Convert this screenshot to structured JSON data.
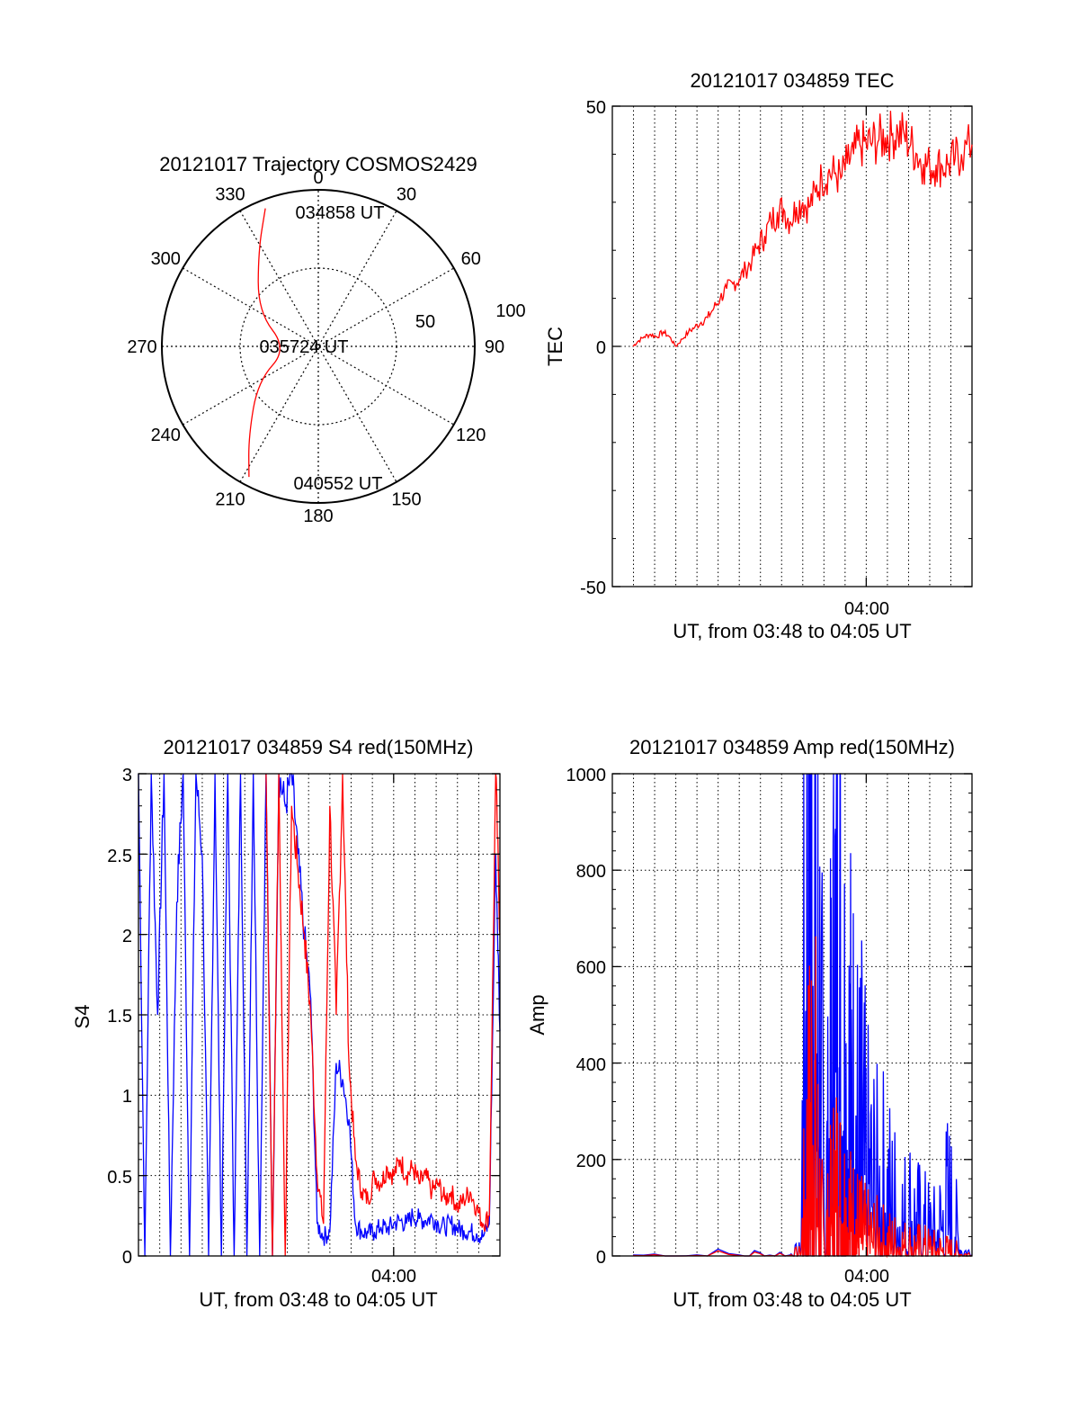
{
  "chart_data": [
    {
      "id": "polar",
      "type": "polar",
      "title": "20121017 Trajectory COSMOS2429",
      "azimuth_labels": [
        "0",
        "30",
        "60",
        "90",
        "120",
        "150",
        "180",
        "210",
        "240",
        "270",
        "300",
        "330"
      ],
      "radial_labels": [
        "50",
        "100"
      ],
      "start_label": "034858 UT",
      "mid_label": "035724 UT",
      "end_label": "040552 UT",
      "trajectory": {
        "color": "#ff0000",
        "points_az_el": [
          [
            339,
            5
          ],
          [
            328,
            25
          ],
          [
            300,
            50
          ],
          [
            265,
            72
          ],
          [
            240,
            50
          ],
          [
            218,
            25
          ],
          [
            208,
            5
          ]
        ]
      }
    },
    {
      "id": "tec",
      "type": "line",
      "title": "20121017 034859 TEC",
      "xlabel": "UT, from 03:48 to 04:05 UT",
      "ylabel": "TEC",
      "xlim": [
        3.8,
        4.0833
      ],
      "ylim": [
        -50,
        50
      ],
      "yticks": [
        "50",
        "0",
        "-50"
      ],
      "xticks": [
        "04:00"
      ],
      "grid": true,
      "series": [
        {
          "color": "#ff0000",
          "x": [
            3.8163,
            3.82,
            3.825,
            3.83,
            3.835,
            3.84,
            3.845,
            3.85,
            3.855,
            3.86,
            3.865,
            3.87,
            3.875,
            3.88,
            3.885,
            3.89,
            3.895,
            3.9,
            3.905,
            3.91,
            3.915,
            3.92,
            3.925,
            3.93,
            3.935,
            3.94,
            3.945,
            3.95,
            3.955,
            3.96,
            3.965,
            3.97,
            3.975,
            3.98,
            3.985,
            3.99,
            3.995,
            4.0,
            4.005,
            4.01,
            4.015,
            4.02,
            4.025,
            4.03,
            4.035,
            4.04,
            4.045,
            4.05,
            4.055,
            4.06,
            4.065,
            4.07,
            4.075,
            4.0833
          ],
          "y": [
            0,
            1,
            2,
            2.5,
            2,
            3,
            2,
            0,
            1.5,
            3,
            4,
            5,
            6,
            8,
            10,
            12,
            13,
            14,
            16,
            18,
            21,
            23,
            26,
            28,
            28.5,
            26,
            29,
            30,
            29,
            32,
            35,
            36,
            36,
            35,
            38,
            40,
            42,
            42,
            42.5,
            43,
            43.5,
            44,
            44.5,
            44,
            42,
            40,
            38,
            37.5,
            37.8,
            37.5,
            38,
            39,
            40,
            42
          ]
        }
      ]
    },
    {
      "id": "s4",
      "type": "line",
      "title": "20121017 034859 S4 red(150MHz)",
      "xlabel": "UT, from 03:48 to 04:05 UT",
      "ylabel": "S4",
      "xlim": [
        3.8,
        4.0833
      ],
      "ylim": [
        0,
        3
      ],
      "yticks": [
        "3",
        "2.5",
        "2",
        "1.5",
        "1",
        "0.5",
        "0"
      ],
      "xticks": [
        "04:00"
      ],
      "grid": true,
      "series": [
        {
          "name": "",
          "color": "#0000ff",
          "x": [
            3.8,
            3.805,
            3.81,
            3.815,
            3.82,
            3.825,
            3.83,
            3.835,
            3.84,
            3.845,
            3.85,
            3.855,
            3.86,
            3.865,
            3.87,
            3.875,
            3.88,
            3.885,
            3.89,
            3.895,
            3.9,
            3.905,
            3.91,
            3.915,
            3.92,
            3.925,
            3.93,
            3.935,
            3.94,
            3.945,
            3.95,
            3.955,
            3.96,
            3.965,
            3.97,
            3.975,
            3.98,
            3.985,
            3.99,
            3.995,
            4.0,
            4.005,
            4.01,
            4.015,
            4.02,
            4.025,
            4.03,
            4.035,
            4.04,
            4.045,
            4.05,
            4.055,
            4.06,
            4.065,
            4.07,
            4.075,
            4.08,
            4.0833
          ],
          "y": [
            3,
            0,
            3,
            1.5,
            3,
            0,
            2.2,
            3,
            0,
            3,
            2.5,
            0,
            3,
            0,
            3,
            0,
            3,
            0,
            3,
            0,
            3,
            0,
            3,
            2.8,
            3,
            2.5,
            2.0,
            1.6,
            0.2,
            0.12,
            0.15,
            1.2,
            1.1,
            0.85,
            0.2,
            0.15,
            0.14,
            0.15,
            0.18,
            0.17,
            0.2,
            0.22,
            0.2,
            0.25,
            0.23,
            0.22,
            0.24,
            0.2,
            0.18,
            0.2,
            0.17,
            0.16,
            0.15,
            0.14,
            0.12,
            0.2,
            2.5,
            1.4
          ]
        },
        {
          "name": "",
          "color": "#ff0000",
          "x": [
            3.9,
            3.905,
            3.91,
            3.915,
            3.92,
            3.925,
            3.93,
            3.935,
            3.94,
            3.945,
            3.95,
            3.955,
            3.96,
            3.965,
            3.97,
            3.975,
            3.98,
            3.985,
            3.99,
            3.995,
            4.0,
            4.005,
            4.01,
            4.015,
            4.02,
            4.025,
            4.03,
            4.035,
            4.04,
            4.045,
            4.05,
            4.055,
            4.06,
            4.065,
            4.07,
            4.075,
            4.08,
            4.0833
          ],
          "y": [
            3,
            0,
            3,
            0,
            2.8,
            2.4,
            2.0,
            1.5,
            0.5,
            0.2,
            2.8,
            1.5,
            3,
            1.2,
            0.6,
            0.4,
            0.35,
            0.5,
            0.45,
            0.55,
            0.5,
            0.6,
            0.5,
            0.55,
            0.45,
            0.5,
            0.4,
            0.45,
            0.35,
            0.4,
            0.3,
            0.35,
            0.4,
            0.3,
            0.2,
            0.25,
            3,
            2
          ]
        }
      ]
    },
    {
      "id": "amp",
      "type": "line",
      "title": "20121017 034859 Amp red(150MHz)",
      "xlabel": "UT, from 03:48 to 04:05 UT",
      "ylabel": "Amp",
      "xlim": [
        3.8,
        4.0833
      ],
      "ylim": [
        0,
        1000
      ],
      "yticks": [
        "1000",
        "800",
        "600",
        "400",
        "200",
        "0"
      ],
      "xticks": [
        "04:00"
      ],
      "grid": true,
      "series": [
        {
          "name": "",
          "color": "#0000ff",
          "x": [
            3.8163,
            3.9,
            3.94,
            3.948,
            3.952,
            3.955,
            3.958,
            3.961,
            3.964,
            3.967,
            3.97,
            3.973,
            3.976,
            3.979,
            3.982,
            3.985,
            3.988,
            3.991,
            3.994,
            3.997,
            4.0,
            4.005,
            4.01,
            4.015,
            4.02,
            4.025,
            4.03,
            4.035,
            4.04,
            4.045,
            4.05,
            4.055,
            4.06,
            4.065,
            4.07,
            4.075,
            4.0833
          ],
          "y": [
            2,
            2,
            2,
            5,
            350,
            640,
            560,
            420,
            260,
            60,
            120,
            220,
            380,
            300,
            260,
            220,
            200,
            180,
            140,
            150,
            110,
            100,
            80,
            90,
            70,
            60,
            50,
            60,
            45,
            40,
            35,
            30,
            50,
            70,
            40,
            10,
            2
          ]
        },
        {
          "name": "",
          "color": "#ff0000",
          "x": [
            3.8163,
            3.9,
            3.94,
            3.948,
            3.952,
            3.955,
            3.958,
            3.961,
            3.964,
            3.967,
            3.97,
            3.973,
            3.976,
            3.979,
            3.982,
            3.985,
            3.988,
            3.991,
            3.994,
            3.997,
            4.0,
            4.005,
            4.01,
            4.015,
            4.02,
            4.025,
            4.03,
            4.035,
            4.04,
            4.045,
            4.05,
            4.055,
            4.06,
            4.065,
            4.07,
            4.075,
            4.0833
          ],
          "y": [
            1,
            1,
            1,
            3,
            80,
            150,
            230,
            120,
            60,
            20,
            40,
            70,
            90,
            80,
            70,
            60,
            50,
            45,
            40,
            35,
            30,
            28,
            25,
            22,
            20,
            18,
            16,
            15,
            14,
            13,
            12,
            10,
            9,
            8,
            6,
            3,
            1
          ]
        }
      ]
    }
  ]
}
